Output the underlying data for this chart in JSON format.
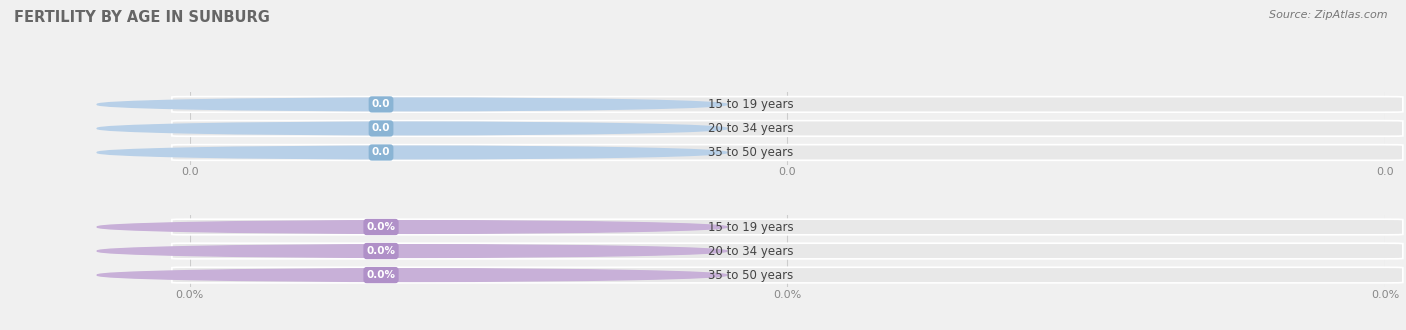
{
  "title": "FERTILITY BY AGE IN SUNBURG",
  "source_text": "Source: ZipAtlas.com",
  "top_section": {
    "categories": [
      "15 to 19 years",
      "20 to 34 years",
      "35 to 50 years"
    ],
    "values": [
      0.0,
      0.0,
      0.0
    ],
    "bar_color": "#b8d0e8",
    "circle_color": "#b8d0e8",
    "badge_color": "#8ab4d4",
    "value_label": "0.0",
    "x_tick_labels": [
      "0.0",
      "0.0",
      "0.0"
    ],
    "x_tick_positions": [
      0.0,
      0.5,
      1.0
    ]
  },
  "bottom_section": {
    "categories": [
      "15 to 19 years",
      "20 to 34 years",
      "35 to 50 years"
    ],
    "values": [
      0.0,
      0.0,
      0.0
    ],
    "bar_color": "#c8b0d8",
    "circle_color": "#c8b0d8",
    "badge_color": "#b090c8",
    "value_label": "0.0%",
    "x_tick_labels": [
      "0.0%",
      "0.0%",
      "0.0%"
    ],
    "x_tick_positions": [
      0.0,
      0.5,
      1.0
    ]
  },
  "bg_color": "#f0f0f0",
  "bar_bg_color": "#e8e8e8",
  "bar_height": 0.62,
  "title_fontsize": 10.5,
  "label_fontsize": 8.5,
  "value_fontsize": 7.5,
  "tick_fontsize": 8,
  "source_fontsize": 8
}
